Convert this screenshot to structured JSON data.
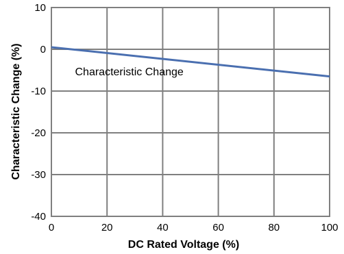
{
  "chart_data": {
    "type": "line",
    "title": "",
    "xlabel": "DC Rated Voltage (%)",
    "ylabel": "Characteristic Change (%)",
    "xlim": [
      0,
      100
    ],
    "ylim": [
      -40,
      10
    ],
    "xticks": [
      0,
      20,
      40,
      60,
      80,
      100
    ],
    "yticks": [
      10,
      0,
      -10,
      -20,
      -30,
      -40
    ],
    "xtick_labels": [
      "0",
      "20",
      "40",
      "60",
      "80",
      "100"
    ],
    "ytick_labels": [
      "10",
      "0",
      "-10",
      "-20",
      "-30",
      "-40"
    ],
    "grid": true,
    "legend": "none",
    "series": [
      {
        "color": "#4a6fb0",
        "x": [
          0,
          100
        ],
        "y": [
          0.5,
          -6.5
        ]
      }
    ],
    "annotations": [
      {
        "text": "Characteristic Change",
        "x": 8.5,
        "y": -6.2
      }
    ]
  }
}
